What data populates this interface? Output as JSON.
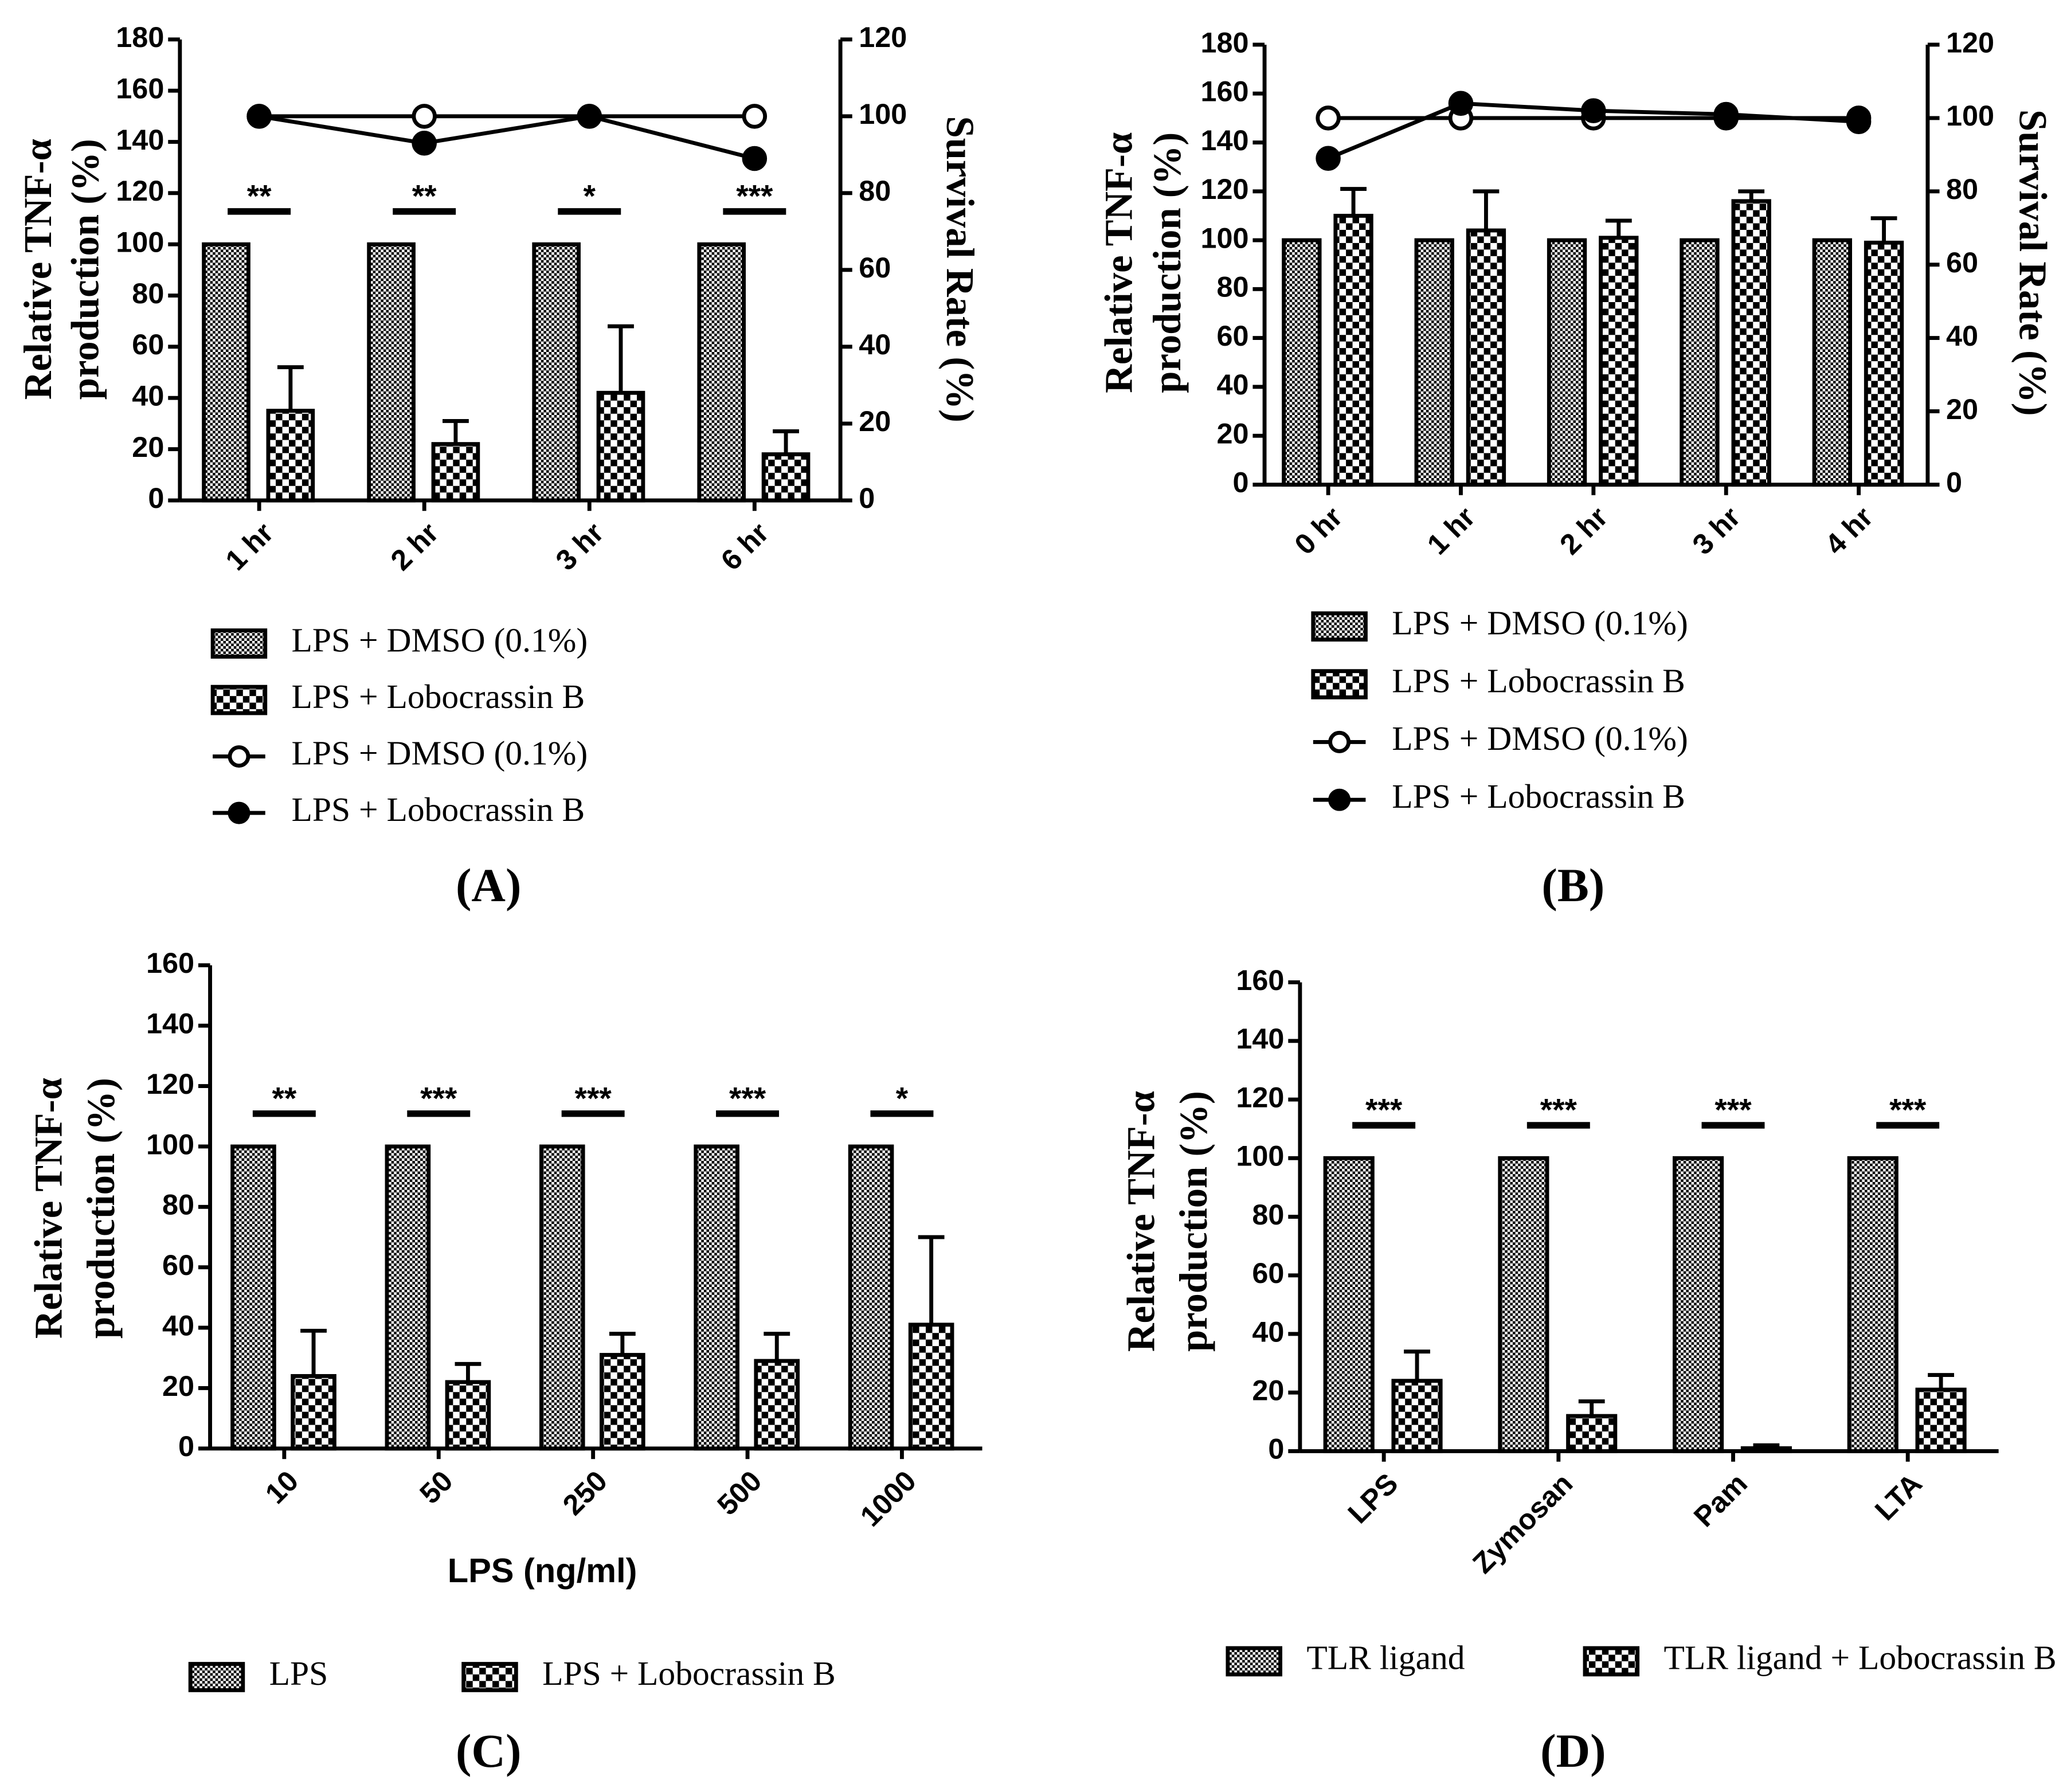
{
  "chart_data": [
    {
      "type": "bar",
      "panel": "(A)",
      "ylabel": [
        "Relative TNF-α",
        "production (%)"
      ],
      "y2label": "Survival Rate (%)",
      "categories": [
        "1 hr",
        "2 hr",
        "3 hr",
        "6 hr"
      ],
      "ylim": [
        0,
        180
      ],
      "yticks": [
        0,
        20,
        40,
        60,
        80,
        100,
        120,
        140,
        160,
        180
      ],
      "y2lim": [
        0,
        120
      ],
      "y2ticks": [
        0,
        20,
        40,
        60,
        80,
        100,
        120
      ],
      "series": [
        {
          "name": "LPS + DMSO (0.1%)",
          "type": "bar",
          "pattern": "fine",
          "color": "#000000",
          "values": [
            100,
            100,
            100,
            100
          ]
        },
        {
          "name": "LPS + Lobocrassin B",
          "type": "bar",
          "pattern": "coarse",
          "color": "#000000",
          "values": [
            35,
            22,
            42,
            18
          ],
          "errors": [
            17,
            9,
            26,
            9
          ]
        },
        {
          "name": "LPS + DMSO (0.1%)",
          "type": "line",
          "axis": "y2",
          "marker": "open",
          "color": "#000000",
          "values": [
            100,
            100,
            100,
            100
          ]
        },
        {
          "name": "LPS + Lobocrassin B",
          "type": "line",
          "axis": "y2",
          "marker": "filled",
          "color": "#000000",
          "values": [
            100,
            93,
            100,
            89
          ]
        }
      ],
      "annotations": [
        "**",
        "**",
        "*",
        "***"
      ]
    },
    {
      "type": "bar",
      "panel": "(B)",
      "ylabel": [
        "Relative TNF-α",
        "production (%)"
      ],
      "y2label": "Survival Rate (%)",
      "categories": [
        "0 hr",
        "1 hr",
        "2 hr",
        "3 hr",
        "4 hr"
      ],
      "ylim": [
        0,
        180
      ],
      "yticks": [
        0,
        20,
        40,
        60,
        80,
        100,
        120,
        140,
        160,
        180
      ],
      "y2lim": [
        0,
        120
      ],
      "y2ticks": [
        0,
        20,
        40,
        60,
        80,
        100,
        120
      ],
      "series": [
        {
          "name": "LPS + DMSO (0.1%)",
          "type": "bar",
          "pattern": "fine",
          "color": "#000000",
          "values": [
            100,
            100,
            100,
            100,
            100
          ]
        },
        {
          "name": "LPS + Lobocrassin B",
          "type": "bar",
          "pattern": "coarse",
          "color": "#000000",
          "values": [
            110,
            104,
            101,
            116,
            99
          ],
          "errors": [
            11,
            16,
            7,
            4,
            10
          ]
        },
        {
          "name": "LPS + DMSO (0.1%)",
          "type": "line",
          "axis": "y2",
          "marker": "open",
          "color": "#000000",
          "values": [
            100,
            100,
            100,
            100,
            100
          ]
        },
        {
          "name": "LPS + Lobocrassin B",
          "type": "line",
          "axis": "y2",
          "marker": "filled",
          "color": "#000000",
          "values": [
            89,
            104,
            102,
            101,
            99
          ]
        }
      ]
    },
    {
      "type": "bar",
      "panel": "(C)",
      "ylabel": [
        "Relative TNF-α",
        "production (%)"
      ],
      "xlabel": "LPS (ng/ml)",
      "categories": [
        "10",
        "50",
        "250",
        "500",
        "1000"
      ],
      "ylim": [
        0,
        160
      ],
      "yticks": [
        0,
        20,
        40,
        60,
        80,
        100,
        120,
        140,
        160
      ],
      "series": [
        {
          "name": "LPS",
          "type": "bar",
          "pattern": "fine",
          "color": "#000000",
          "values": [
            100,
            100,
            100,
            100,
            100
          ]
        },
        {
          "name": "LPS + Lobocrassin B",
          "type": "bar",
          "pattern": "coarse",
          "color": "#000000",
          "values": [
            24,
            22,
            31,
            29,
            41
          ],
          "errors": [
            15,
            6,
            7,
            9,
            29
          ]
        }
      ],
      "annotations": [
        "**",
        "***",
        "***",
        "***",
        "*"
      ]
    },
    {
      "type": "bar",
      "panel": "(D)",
      "ylabel": [
        "Relative TNF-α",
        "production (%)"
      ],
      "categories": [
        "LPS",
        "Zymosan",
        "Pam",
        "LTA"
      ],
      "ylim": [
        0,
        160
      ],
      "yticks": [
        0,
        20,
        40,
        60,
        80,
        100,
        120,
        140,
        160
      ],
      "series": [
        {
          "name": "TLR ligand",
          "type": "bar",
          "pattern": "fine",
          "color": "#000000",
          "values": [
            100,
            100,
            100,
            100
          ]
        },
        {
          "name": "TLR ligand + Lobocrassin B",
          "type": "bar",
          "pattern": "coarse",
          "color": "#000000",
          "values": [
            24,
            12,
            1,
            21
          ],
          "errors": [
            10,
            5,
            1,
            5
          ]
        }
      ],
      "annotations": [
        "***",
        "***",
        "***",
        "***"
      ]
    }
  ]
}
